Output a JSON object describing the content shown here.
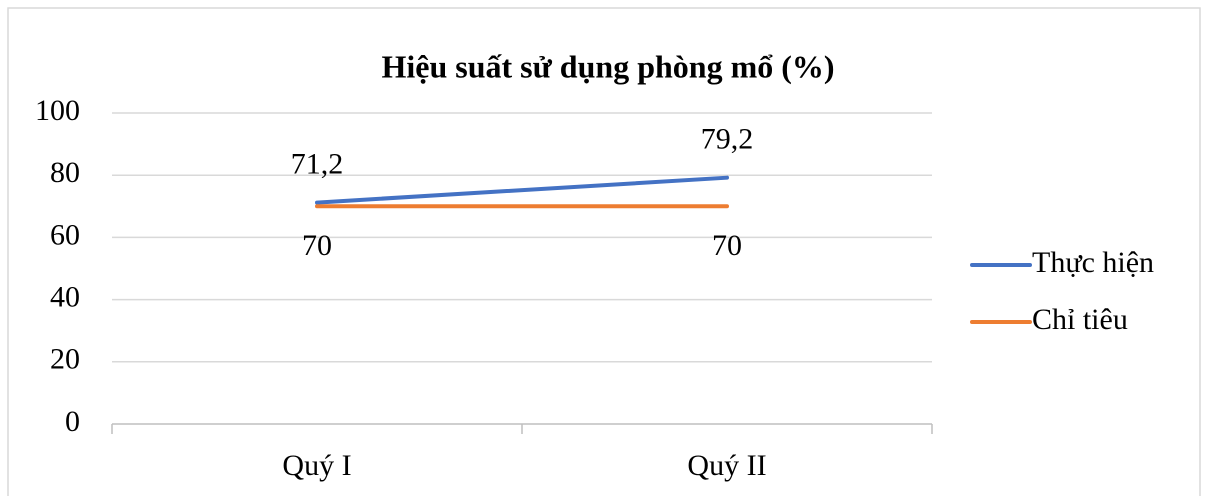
{
  "chart_data": {
    "type": "line",
    "title": "Hiệu suất sử dụng phòng mổ (%)",
    "categories": [
      "Quý I",
      "Quý II"
    ],
    "series": [
      {
        "name": "Thực hiện",
        "color": "#4472c4",
        "values": [
          71.2,
          79.2
        ],
        "value_labels": [
          "71,2",
          "79,2"
        ]
      },
      {
        "name": "Chỉ tiêu",
        "color": "#ed7d31",
        "values": [
          70,
          70
        ]
      }
    ],
    "ylim": [
      0,
      100
    ],
    "yticks": [
      0,
      20,
      40,
      60,
      80,
      100
    ],
    "grid": true,
    "legend": "right"
  }
}
